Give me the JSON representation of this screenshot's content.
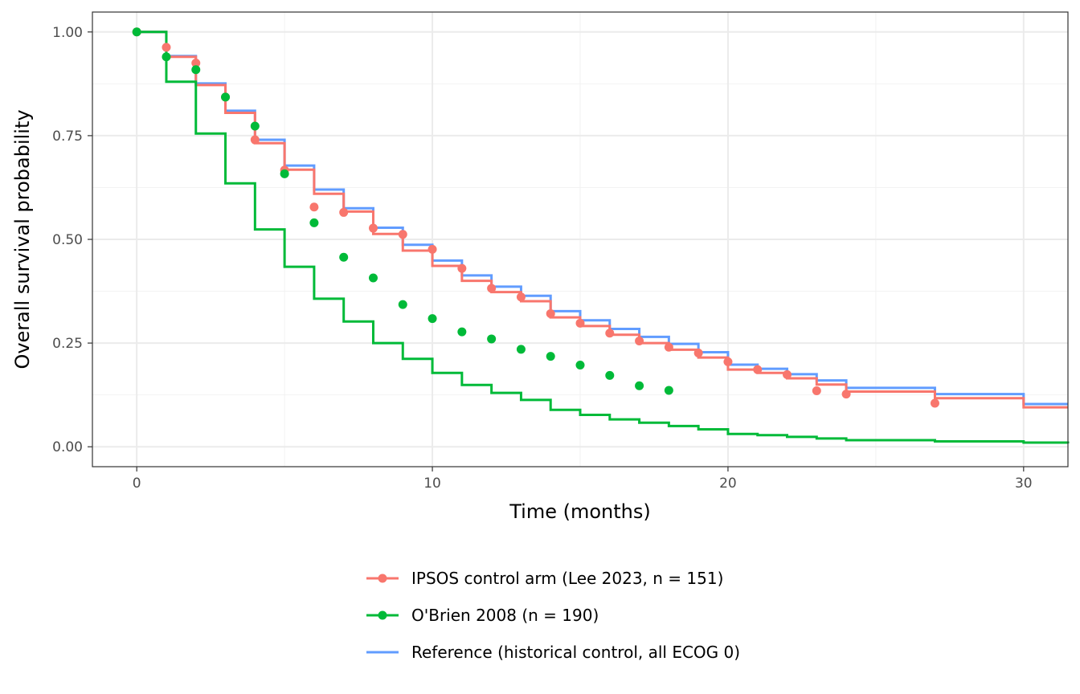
{
  "chart_data": {
    "type": "line",
    "title": "",
    "xlabel": "Time (months)",
    "ylabel": "Overall survival probability",
    "xlim": [
      -1.5,
      31.5
    ],
    "ylim": [
      -0.048,
      1.048
    ],
    "x_ticks": [
      0,
      10,
      20,
      30
    ],
    "x_tick_labels": [
      "0",
      "10",
      "20",
      "30"
    ],
    "y_ticks": [
      0,
      0.25,
      0.5,
      0.75,
      1.0
    ],
    "y_tick_labels": [
      "0.00",
      "0.25",
      "0.50",
      "0.75",
      "1.00"
    ],
    "grid": true,
    "legend_position": "bottom",
    "series": [
      {
        "name": "Reference (historical control, all ECOG 0)",
        "color": "#619CFF",
        "kind": "step",
        "x": [
          0,
          1,
          2,
          3,
          4,
          5,
          6,
          7,
          8,
          9,
          10,
          11,
          12,
          13,
          14,
          15,
          16,
          17,
          18,
          19,
          20,
          21,
          22,
          23,
          24,
          27,
          30,
          31.5
        ],
        "y": [
          1.0,
          0.942,
          0.876,
          0.81,
          0.74,
          0.678,
          0.62,
          0.575,
          0.528,
          0.487,
          0.449,
          0.413,
          0.386,
          0.364,
          0.327,
          0.305,
          0.284,
          0.265,
          0.248,
          0.228,
          0.198,
          0.188,
          0.175,
          0.16,
          0.142,
          0.127,
          0.103,
          0.103
        ]
      },
      {
        "name": "IPSOS control arm (Lee 2023, n = 151)",
        "color": "#F8766D",
        "kind": "step",
        "x": [
          0,
          1,
          2,
          3,
          4,
          5,
          6,
          7,
          8,
          9,
          10,
          11,
          12,
          13,
          14,
          15,
          16,
          17,
          18,
          19,
          20,
          21,
          22,
          23,
          24,
          27,
          30,
          31.5
        ],
        "y": [
          1.0,
          0.94,
          0.872,
          0.805,
          0.732,
          0.668,
          0.61,
          0.567,
          0.513,
          0.473,
          0.436,
          0.4,
          0.373,
          0.351,
          0.312,
          0.291,
          0.27,
          0.25,
          0.234,
          0.215,
          0.186,
          0.178,
          0.165,
          0.15,
          0.133,
          0.117,
          0.095,
          0.095
        ]
      },
      {
        "name": "O'Brien 2008 (n = 190)",
        "color": "#00BA38",
        "kind": "step",
        "x": [
          0,
          1,
          2,
          3,
          4,
          5,
          6,
          7,
          8,
          9,
          10,
          11,
          12,
          13,
          14,
          15,
          16,
          17,
          18,
          19,
          20,
          21,
          22,
          23,
          24,
          27,
          30,
          31.5
        ],
        "y": [
          1.0,
          0.88,
          0.755,
          0.635,
          0.524,
          0.434,
          0.357,
          0.302,
          0.25,
          0.212,
          0.178,
          0.149,
          0.13,
          0.113,
          0.089,
          0.077,
          0.066,
          0.058,
          0.05,
          0.042,
          0.031,
          0.028,
          0.024,
          0.02,
          0.016,
          0.013,
          0.01,
          0.008
        ]
      }
    ],
    "points": [
      {
        "name": "IPSOS control arm (Lee 2023, n = 151)",
        "color": "#F8766D",
        "x": [
          0,
          1,
          2,
          3,
          4,
          5,
          6,
          7,
          8,
          9,
          10,
          11,
          12,
          13,
          14,
          15,
          16,
          17,
          18,
          19,
          20,
          21,
          22,
          23,
          24,
          27
        ],
        "y": [
          1.0,
          0.963,
          0.925,
          0.843,
          0.74,
          0.667,
          0.578,
          0.565,
          0.527,
          0.512,
          0.476,
          0.43,
          0.382,
          0.361,
          0.321,
          0.298,
          0.274,
          0.255,
          0.24,
          0.226,
          0.205,
          0.186,
          0.174,
          0.135,
          0.127,
          0.105
        ]
      },
      {
        "name": "O'Brien 2008 (n = 190)",
        "color": "#00BA38",
        "x": [
          0,
          1,
          2,
          3,
          4,
          5,
          6,
          7,
          8,
          9,
          10,
          11,
          12,
          13,
          14,
          15,
          16,
          17,
          18
        ],
        "y": [
          1.0,
          0.94,
          0.909,
          0.843,
          0.773,
          0.658,
          0.54,
          0.457,
          0.407,
          0.343,
          0.309,
          0.277,
          0.26,
          0.235,
          0.218,
          0.197,
          0.172,
          0.147,
          0.136
        ]
      }
    ],
    "legend": [
      {
        "label": "IPSOS control arm (Lee 2023, n = 151)",
        "color": "#F8766D",
        "point": true
      },
      {
        "label": "O'Brien 2008 (n = 190)",
        "color": "#00BA38",
        "point": true
      },
      {
        "label": "Reference (historical control, all ECOG 0)",
        "color": "#619CFF",
        "point": false
      }
    ]
  }
}
